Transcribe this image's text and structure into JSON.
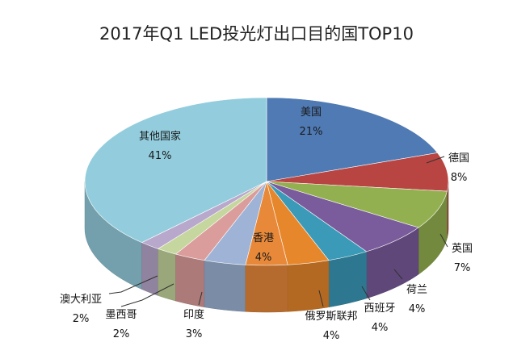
{
  "chart_data": {
    "type": "pie",
    "title": "2017年Q1 LED投光灯出口目的国TOP10",
    "slices": [
      {
        "name": "美国",
        "value": 21,
        "label": "21%",
        "color": "#4F7AB4"
      },
      {
        "name": "德国",
        "value": 8,
        "label": "8%",
        "color": "#B94543"
      },
      {
        "name": "",
        "value": 8,
        "label": "",
        "color": "#93B050"
      },
      {
        "name": "英国",
        "value": 7,
        "label": "7%",
        "color": "#7A5B9B"
      },
      {
        "name": "荷兰",
        "value": 4,
        "label": "4%",
        "color": "#3A9AB8"
      },
      {
        "name": "西班牙",
        "value": 4,
        "label": "4%",
        "color": "#E7872B"
      },
      {
        "name": "俄罗斯联邦",
        "value": 4,
        "label": "4%",
        "color": "#E8893A"
      },
      {
        "name": "香港",
        "value": 4,
        "label": "4%",
        "color": "#9EB3D6"
      },
      {
        "name": "印度",
        "value": 3,
        "label": "3%",
        "color": "#DB9D9B"
      },
      {
        "name": "墨西哥",
        "value": 2,
        "label": "2%",
        "color": "#C5D69E"
      },
      {
        "name": "澳大利亚",
        "value": 2,
        "label": "2%",
        "color": "#B8A8CC"
      },
      {
        "name": "其他国家",
        "value": 41,
        "label": "41%",
        "color": "#93CDDD"
      }
    ]
  }
}
